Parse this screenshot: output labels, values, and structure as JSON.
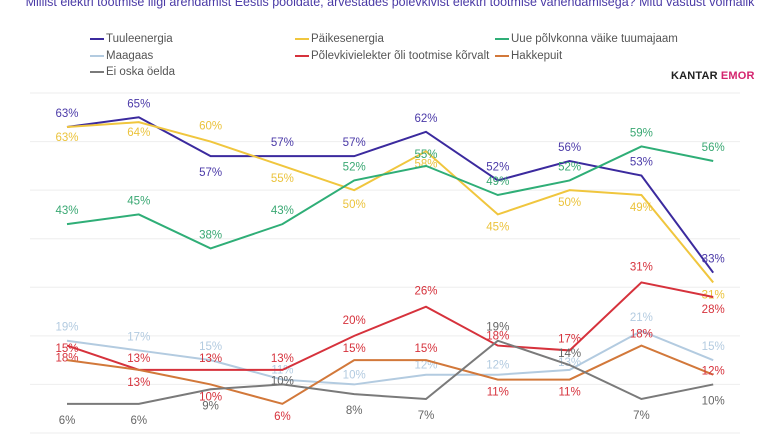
{
  "title": "Millist elektri tootmise liigi arendamist Eestis pooldate, arvestades põlevkivist elektri tootmise vähendamisega? Mitu vastust võimalik",
  "logo": {
    "brand": "KANTAR",
    "sub": "EMOR"
  },
  "chart_data": {
    "type": "line",
    "title": "Millist elektri tootmise liigi arendamist Eestis pooldate, arvestades põlevkivist elektri tootmise vähendamisega? Mitu vastust võimalik",
    "ylim": [
      0,
      70
    ],
    "grid": true,
    "legend_placement": "top",
    "value_suffix": "%",
    "series": [
      {
        "name": "Tuuleenergia",
        "color": "#3b2a9e",
        "values": [
          63,
          65,
          57,
          57,
          57,
          62,
          52,
          56,
          53,
          33
        ]
      },
      {
        "name": "Päikesenergia",
        "color": "#f0c63e",
        "values": [
          63,
          64,
          60,
          55,
          50,
          58,
          45,
          50,
          49,
          31
        ]
      },
      {
        "name": "Uue põlvkonna väike tuumajaam",
        "color": "#2fae77",
        "values": [
          43,
          45,
          38,
          43,
          52,
          55,
          49,
          52,
          59,
          56
        ]
      },
      {
        "name": "Maagaas",
        "color": "#b3cbe0",
        "values": [
          19,
          17,
          15,
          11,
          10,
          12,
          12,
          13,
          21,
          15
        ]
      },
      {
        "name": "Põlevkivielekter õli tootmise kõrvalt",
        "color": "#d6323c",
        "values": [
          18,
          13,
          13,
          13,
          20,
          26,
          18,
          17,
          31,
          28
        ]
      },
      {
        "name": "Hakkepuit",
        "color": "#d2783a",
        "values": [
          15,
          13,
          10,
          6,
          15,
          15,
          11,
          11,
          18,
          12
        ]
      },
      {
        "name": "Ei oska öelda",
        "color": "#7a7a7a",
        "values": [
          6,
          6,
          9,
          10,
          8,
          7,
          19,
          14,
          7,
          10
        ]
      }
    ]
  }
}
